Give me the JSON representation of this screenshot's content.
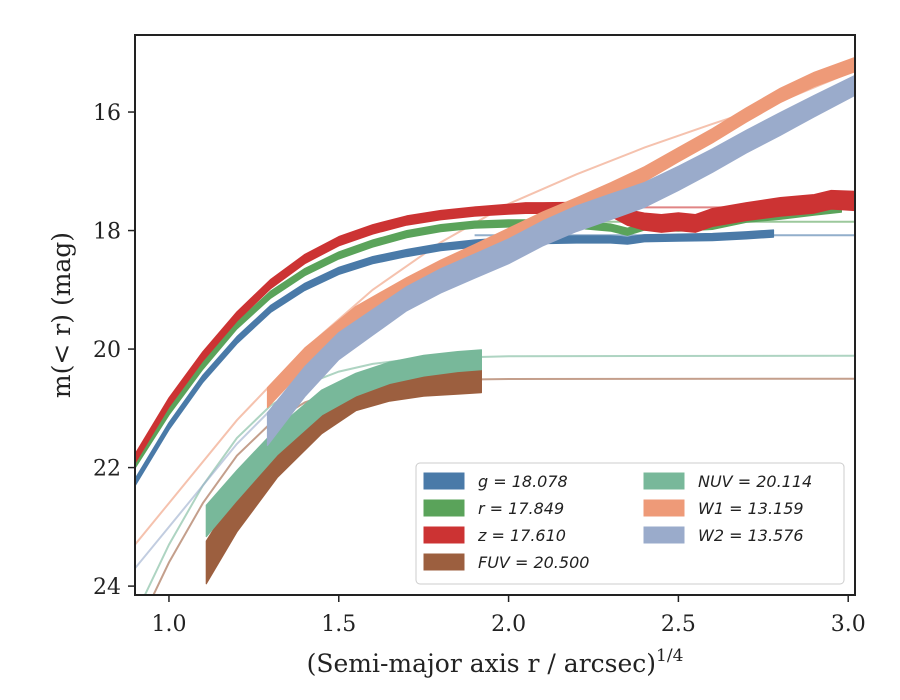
{
  "chart_data": {
    "type": "line",
    "xlabel": "(Semi-major axis r / arcsec)",
    "xlabel_sup": "1/4",
    "ylabel": "m(< r) (mag)",
    "xlim": [
      0.9,
      3.02
    ],
    "ylim": [
      24.15,
      14.7
    ],
    "y_inverted": true,
    "x_ticks": [
      1.0,
      1.5,
      2.0,
      2.5,
      3.0
    ],
    "x_tick_labels": [
      "1.0",
      "1.5",
      "2.0",
      "2.5",
      "3.0"
    ],
    "y_ticks": [
      16,
      18,
      20,
      22,
      24
    ],
    "y_tick_labels": [
      "16",
      "18",
      "20",
      "22",
      "24"
    ],
    "grid": false,
    "legend_position": "bottom-right",
    "legend_columns": 2,
    "series": [
      {
        "name": "g = 18.078",
        "color": "#4a7aa8",
        "data": [
          [
            0.9,
            22.25
          ],
          [
            1.0,
            21.3
          ],
          [
            1.1,
            20.5
          ],
          [
            1.2,
            19.85
          ],
          [
            1.3,
            19.32
          ],
          [
            1.4,
            18.95
          ],
          [
            1.5,
            18.68
          ],
          [
            1.6,
            18.5
          ],
          [
            1.7,
            18.38
          ],
          [
            1.8,
            18.28
          ],
          [
            1.9,
            18.22
          ],
          [
            2.0,
            18.18
          ],
          [
            2.1,
            18.16
          ],
          [
            2.2,
            18.15
          ],
          [
            2.3,
            18.15
          ],
          [
            2.35,
            18.17
          ],
          [
            2.4,
            18.13
          ],
          [
            2.5,
            18.12
          ],
          [
            2.6,
            18.11
          ],
          [
            2.7,
            18.08
          ],
          [
            2.78,
            18.05
          ]
        ],
        "data_width": [
          1.0,
          1.0,
          1.0,
          1.0,
          1.0,
          1.0,
          1.0,
          1.0,
          1.0,
          1.0,
          1.0,
          1.0,
          1.0,
          1.0,
          1.0,
          1.0,
          1.0,
          1.0,
          1.0,
          1.0,
          1.0
        ],
        "model": [
          [
            1.9,
            18.08
          ],
          [
            3.02,
            18.08
          ]
        ]
      },
      {
        "name": "r = 17.849",
        "color": "#5aa35a",
        "data": [
          [
            0.9,
            21.95
          ],
          [
            1.0,
            21.05
          ],
          [
            1.1,
            20.28
          ],
          [
            1.2,
            19.6
          ],
          [
            1.3,
            19.08
          ],
          [
            1.4,
            18.7
          ],
          [
            1.5,
            18.42
          ],
          [
            1.6,
            18.22
          ],
          [
            1.7,
            18.06
          ],
          [
            1.8,
            17.96
          ],
          [
            1.9,
            17.9
          ],
          [
            2.0,
            17.88
          ],
          [
            2.1,
            17.88
          ],
          [
            2.2,
            17.9
          ],
          [
            2.3,
            17.95
          ],
          [
            2.35,
            18.02
          ],
          [
            2.4,
            17.93
          ],
          [
            2.5,
            17.95
          ],
          [
            2.6,
            17.92
          ],
          [
            2.7,
            17.8
          ],
          [
            2.8,
            17.75
          ],
          [
            2.9,
            17.68
          ],
          [
            2.98,
            17.63
          ]
        ],
        "data_width": [
          1.0,
          1.0,
          1.0,
          1.0,
          1.0,
          1.0,
          1.0,
          1.0,
          1.0,
          1.0,
          1.0,
          1.0,
          1.0,
          1.0,
          1.0,
          1.0,
          1.0,
          1.0,
          1.0,
          1.0,
          1.0,
          1.0,
          1.0
        ],
        "model": [
          [
            1.9,
            17.85
          ],
          [
            3.02,
            17.85
          ]
        ]
      },
      {
        "name": "z = 17.610",
        "color": "#cc3333",
        "data": [
          [
            0.9,
            21.85
          ],
          [
            1.0,
            20.9
          ],
          [
            1.1,
            20.12
          ],
          [
            1.2,
            19.45
          ],
          [
            1.3,
            18.9
          ],
          [
            1.4,
            18.48
          ],
          [
            1.5,
            18.18
          ],
          [
            1.6,
            17.98
          ],
          [
            1.7,
            17.83
          ],
          [
            1.8,
            17.74
          ],
          [
            1.9,
            17.68
          ],
          [
            2.0,
            17.64
          ],
          [
            2.05,
            17.62
          ],
          [
            2.1,
            17.62
          ],
          [
            2.2,
            17.62
          ],
          [
            2.3,
            17.65
          ],
          [
            2.35,
            17.78
          ],
          [
            2.4,
            17.85
          ],
          [
            2.45,
            17.88
          ],
          [
            2.5,
            17.85
          ],
          [
            2.55,
            17.88
          ],
          [
            2.6,
            17.78
          ],
          [
            2.7,
            17.68
          ],
          [
            2.8,
            17.6
          ],
          [
            2.9,
            17.55
          ],
          [
            2.95,
            17.48
          ],
          [
            3.02,
            17.5
          ]
        ],
        "data_width": [
          1.3,
          1.3,
          1.3,
          1.3,
          1.3,
          1.3,
          1.3,
          1.3,
          1.3,
          1.3,
          1.3,
          1.4,
          1.5,
          1.5,
          1.6,
          1.8,
          2.2,
          2.4,
          2.5,
          2.5,
          2.5,
          2.5,
          2.5,
          2.6,
          2.6,
          2.6,
          2.7
        ],
        "model": [
          [
            1.9,
            17.61
          ],
          [
            3.02,
            17.61
          ]
        ]
      },
      {
        "name": "FUV = 20.500",
        "color": "#9c5f3f",
        "data": [
          [
            1.11,
            23.6
          ],
          [
            1.2,
            22.75
          ],
          [
            1.32,
            21.85
          ],
          [
            1.45,
            21.15
          ],
          [
            1.55,
            20.8
          ],
          [
            1.65,
            20.65
          ],
          [
            1.75,
            20.58
          ],
          [
            1.85,
            20.55
          ],
          [
            1.92,
            20.53
          ]
        ],
        "data_width": [
          6.0,
          5.6,
          5.2,
          4.6,
          4.0,
          3.8,
          3.6,
          3.5,
          3.4
        ],
        "model": [
          [
            0.9,
            24.8
          ],
          [
            1.0,
            23.6
          ],
          [
            1.1,
            22.6
          ],
          [
            1.2,
            21.8
          ],
          [
            1.3,
            21.25
          ],
          [
            1.4,
            20.9
          ],
          [
            1.5,
            20.7
          ],
          [
            1.6,
            20.6
          ],
          [
            1.7,
            20.55
          ],
          [
            1.8,
            20.52
          ],
          [
            2.0,
            20.505
          ],
          [
            3.02,
            20.5
          ]
        ]
      },
      {
        "name": "NUV = 20.114",
        "color": "#78b89a",
        "data": [
          [
            1.11,
            22.9
          ],
          [
            1.2,
            22.3
          ],
          [
            1.32,
            21.55
          ],
          [
            1.45,
            20.9
          ],
          [
            1.55,
            20.6
          ],
          [
            1.65,
            20.4
          ],
          [
            1.75,
            20.28
          ],
          [
            1.85,
            20.21
          ],
          [
            1.92,
            20.18
          ]
        ],
        "data_width": [
          4.4,
          4.2,
          3.8,
          3.5,
          3.2,
          3.0,
          2.9,
          2.8,
          2.8
        ],
        "model": [
          [
            0.9,
            24.5
          ],
          [
            1.0,
            23.3
          ],
          [
            1.1,
            22.3
          ],
          [
            1.2,
            21.5
          ],
          [
            1.3,
            20.95
          ],
          [
            1.4,
            20.6
          ],
          [
            1.5,
            20.38
          ],
          [
            1.6,
            20.25
          ],
          [
            1.7,
            20.18
          ],
          [
            1.8,
            20.15
          ],
          [
            2.0,
            20.12
          ],
          [
            3.02,
            20.114
          ]
        ]
      },
      {
        "name": "W1 = 13.159",
        "color": "#ee9a78",
        "data": [
          [
            1.29,
            20.82
          ],
          [
            1.4,
            20.15
          ],
          [
            1.55,
            19.45
          ],
          [
            1.7,
            18.95
          ],
          [
            1.8,
            18.65
          ],
          [
            1.9,
            18.38
          ],
          [
            2.0,
            18.1
          ],
          [
            2.1,
            17.82
          ],
          [
            2.2,
            17.58
          ],
          [
            2.3,
            17.32
          ],
          [
            2.4,
            17.05
          ],
          [
            2.5,
            16.72
          ],
          [
            2.6,
            16.4
          ],
          [
            2.7,
            16.05
          ],
          [
            2.8,
            15.72
          ],
          [
            2.9,
            15.45
          ],
          [
            3.02,
            15.2
          ]
        ],
        "data_width": [
          2.8,
          2.8,
          2.8,
          2.6,
          2.5,
          2.4,
          2.3,
          2.2,
          2.2,
          2.1,
          2.1,
          2.0,
          2.0,
          2.0,
          2.0,
          2.0,
          2.0
        ],
        "model": [
          [
            0.9,
            23.3
          ],
          [
            1.0,
            22.6
          ],
          [
            1.2,
            21.2
          ],
          [
            1.4,
            20.0
          ],
          [
            1.6,
            19.0
          ],
          [
            1.8,
            18.2
          ],
          [
            2.0,
            17.55
          ],
          [
            2.2,
            17.05
          ],
          [
            2.4,
            16.6
          ],
          [
            2.6,
            16.2
          ],
          [
            2.8,
            15.82
          ],
          [
            3.02,
            15.3
          ]
        ]
      },
      {
        "name": "W2 = 13.576",
        "color": "#9aabcb",
        "data": [
          [
            1.29,
            21.35
          ],
          [
            1.4,
            20.55
          ],
          [
            1.5,
            19.95
          ],
          [
            1.6,
            19.55
          ],
          [
            1.7,
            19.15
          ],
          [
            1.8,
            18.85
          ],
          [
            1.9,
            18.6
          ],
          [
            2.0,
            18.35
          ],
          [
            2.1,
            18.05
          ],
          [
            2.2,
            17.8
          ],
          [
            2.3,
            17.6
          ],
          [
            2.4,
            17.4
          ],
          [
            2.5,
            17.12
          ],
          [
            2.6,
            16.82
          ],
          [
            2.7,
            16.5
          ],
          [
            2.8,
            16.2
          ],
          [
            2.9,
            15.9
          ],
          [
            3.02,
            15.55
          ]
        ],
        "data_width": [
          4.6,
          4.2,
          3.8,
          3.6,
          3.4,
          3.4,
          3.4,
          3.5,
          3.5,
          3.6,
          3.6,
          3.5,
          3.4,
          3.3,
          3.2,
          3.2,
          3.0,
          2.8
        ],
        "model": [
          [
            0.9,
            23.7
          ],
          [
            1.0,
            23.0
          ],
          [
            1.2,
            21.6
          ],
          [
            1.4,
            20.45
          ],
          [
            1.6,
            19.5
          ],
          [
            1.8,
            18.8
          ],
          [
            2.0,
            18.25
          ],
          [
            2.2,
            17.75
          ],
          [
            2.4,
            17.28
          ],
          [
            2.6,
            16.82
          ],
          [
            2.8,
            16.28
          ],
          [
            3.02,
            15.6
          ]
        ]
      }
    ]
  }
}
